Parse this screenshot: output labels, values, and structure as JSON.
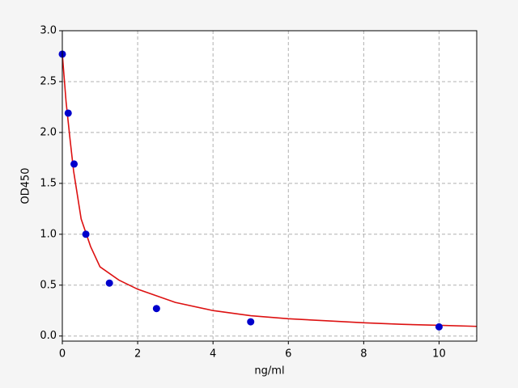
{
  "chart_data": {
    "type": "scatter",
    "xlabel": "ng/ml",
    "ylabel": "OD450",
    "xlim": [
      0,
      11
    ],
    "ylim": [
      -0.05,
      3.0
    ],
    "xticks": [
      0,
      2,
      4,
      6,
      8,
      10
    ],
    "yticks": [
      {
        "value": 0,
        "label": "0.0"
      },
      {
        "value": 0.5,
        "label": "0.5"
      },
      {
        "value": 1,
        "label": "1.0"
      },
      {
        "value": 1.5,
        "label": "1.5"
      },
      {
        "value": 2,
        "label": "2.0"
      },
      {
        "value": 2.5,
        "label": "2.5"
      },
      {
        "value": 3,
        "label": "3.0"
      }
    ],
    "grid": true,
    "series": [
      {
        "kind": "points",
        "color": "#0000cc",
        "x": [
          0,
          0.156,
          0.3125,
          0.625,
          1.25,
          2.5,
          5,
          10
        ],
        "values": [
          2.77,
          2.19,
          1.69,
          1.0,
          0.52,
          0.27,
          0.14,
          0.09
        ]
      },
      {
        "kind": "line",
        "color": "#dd1111",
        "x": [
          0,
          0.1,
          0.2,
          0.3,
          0.5,
          0.75,
          1,
          1.5,
          2,
          3,
          4,
          5,
          6,
          7,
          8,
          9,
          10,
          11
        ],
        "values": [
          2.77,
          2.3,
          1.95,
          1.62,
          1.15,
          0.88,
          0.68,
          0.55,
          0.46,
          0.33,
          0.25,
          0.2,
          0.17,
          0.15,
          0.13,
          0.115,
          0.105,
          0.095
        ]
      }
    ]
  }
}
